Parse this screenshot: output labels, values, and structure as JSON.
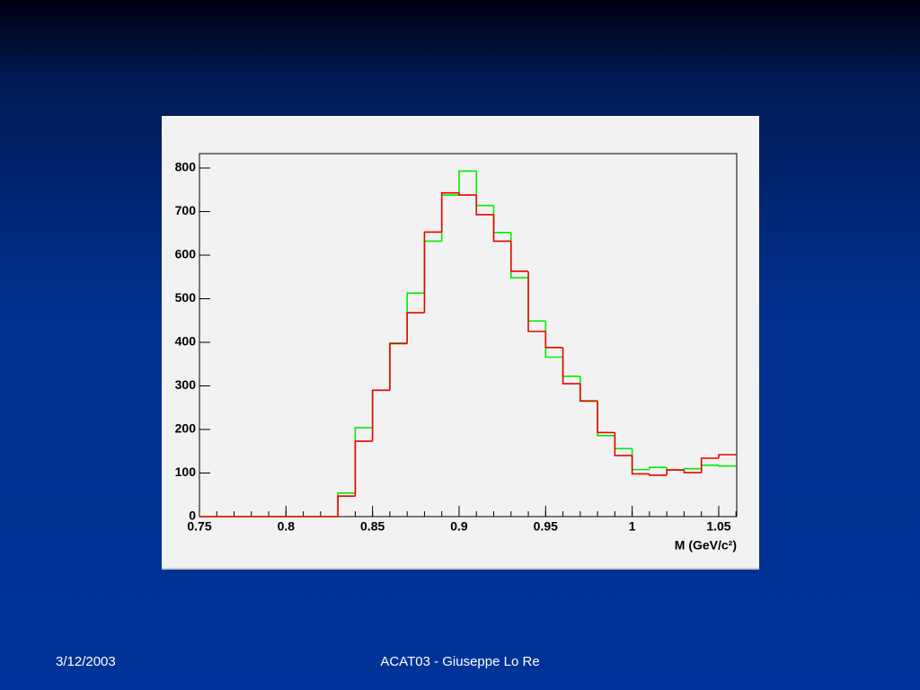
{
  "chart_data": {
    "type": "histogram",
    "x_label": "M (GeV/c²)",
    "bins": [
      0.75,
      0.76,
      0.77,
      0.78,
      0.79,
      0.8,
      0.81,
      0.82,
      0.83,
      0.84,
      0.85,
      0.86,
      0.87,
      0.88,
      0.89,
      0.9,
      0.91,
      0.92,
      0.93,
      0.94,
      0.95,
      0.96,
      0.97,
      0.98,
      0.99,
      1.0,
      1.01,
      1.02,
      1.03,
      1.04,
      1.05,
      1.06
    ],
    "series": [
      {
        "color": "#00ee00",
        "values": [
          0,
          0,
          0,
          0,
          0,
          0,
          0,
          0,
          54,
          204,
          290,
          398,
          513,
          632,
          738,
          793,
          714,
          652,
          548,
          449,
          366,
          322,
          266,
          186,
          156,
          108,
          113,
          107,
          110,
          118,
          116
        ]
      },
      {
        "color": "#ee0000",
        "values": [
          0,
          0,
          0,
          0,
          0,
          0,
          0,
          0,
          47,
          173,
          290,
          397,
          468,
          653,
          743,
          738,
          693,
          632,
          563,
          425,
          388,
          305,
          265,
          193,
          140,
          98,
          95,
          107,
          101,
          134,
          142
        ]
      }
    ],
    "xlim": [
      0.75,
      1.0604
    ],
    "ylim": [
      0,
      833
    ],
    "xticks": [
      0.75,
      0.8,
      0.85,
      0.9,
      0.95,
      1,
      1.05
    ],
    "yticks": [
      0,
      100,
      200,
      300,
      400,
      500,
      600,
      700,
      800
    ]
  },
  "footer": {
    "date": "3/12/2003",
    "center": "ACAT03 - Giuseppe Lo Re"
  }
}
